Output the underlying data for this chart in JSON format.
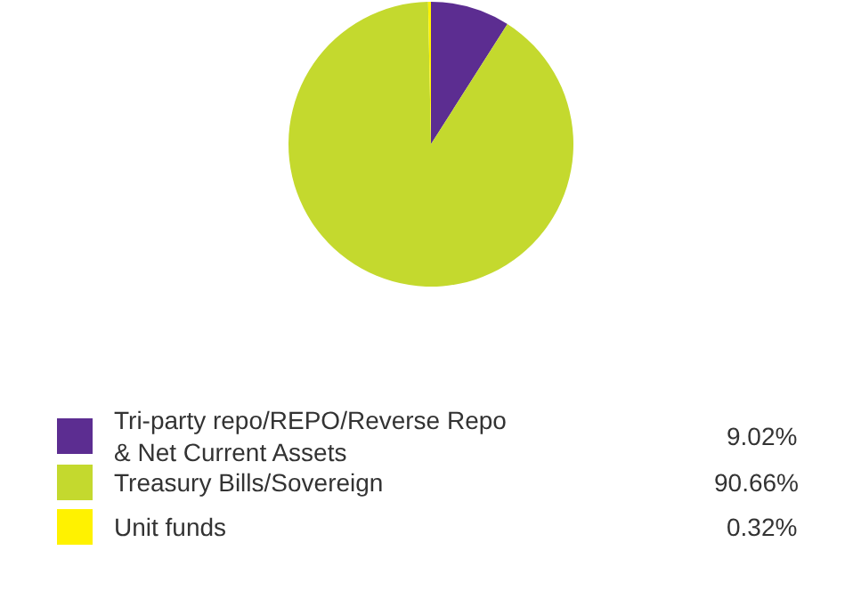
{
  "chart_data": {
    "type": "pie",
    "categories": [
      "Tri-party repo/REPO/Reverse Repo & Net Current Assets",
      "Treasury Bills/Sovereign",
      "Unit funds"
    ],
    "values": [
      9.02,
      90.66,
      0.32
    ],
    "colors": [
      "#5c2d91",
      "#c4d92e",
      "#fff200"
    ],
    "value_labels": [
      "9.02%",
      "90.66%",
      "0.32%"
    ],
    "legend": "bottom"
  }
}
